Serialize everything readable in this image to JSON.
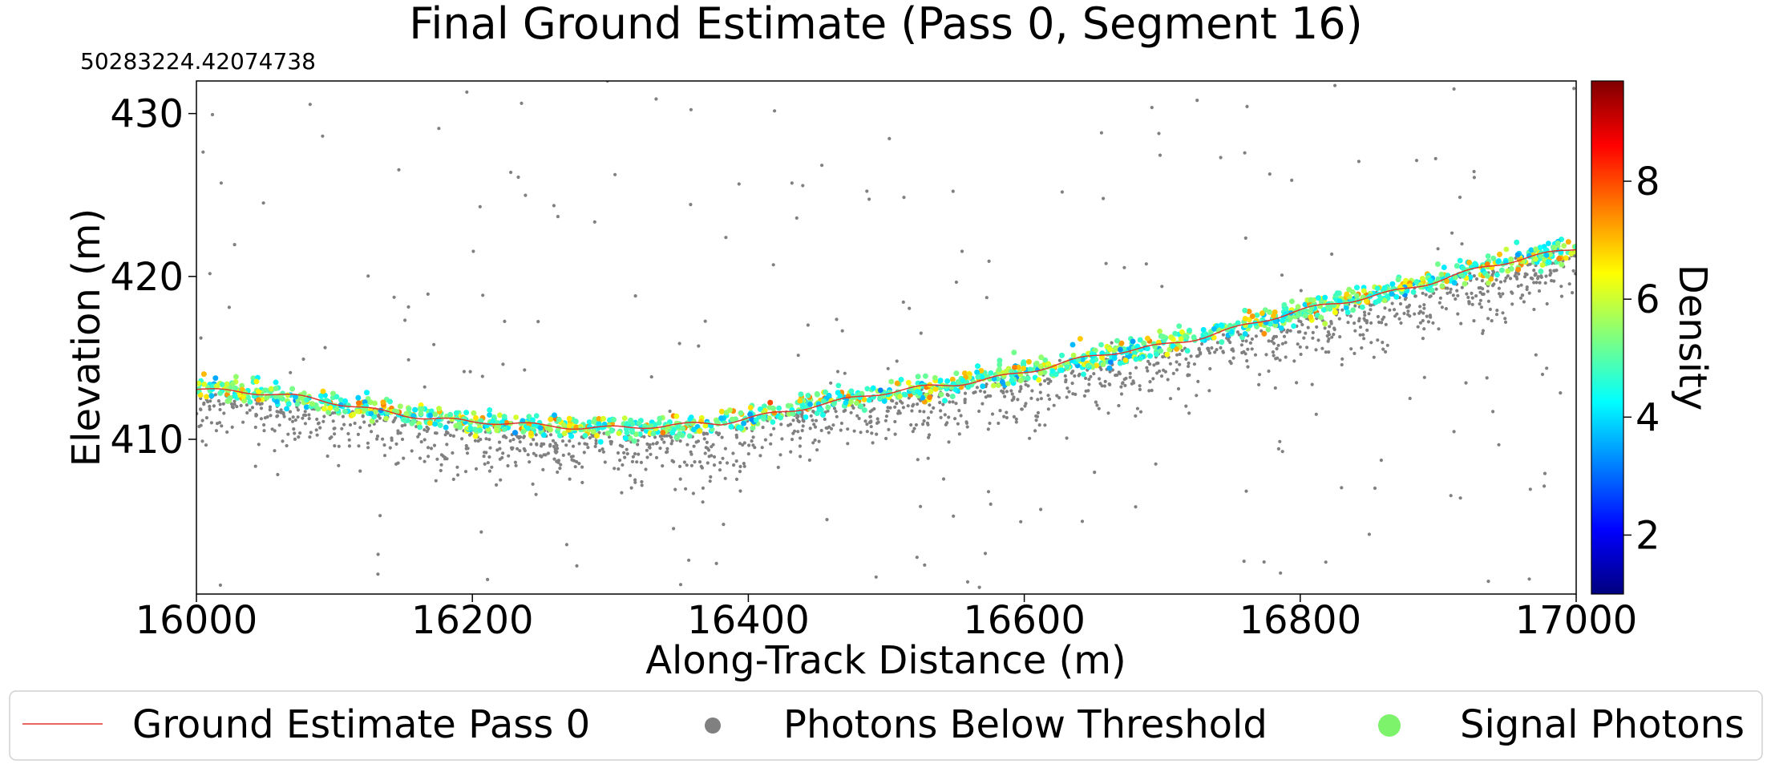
{
  "chart_data": {
    "type": "scatter",
    "title": "Final Ground Estimate (Pass 0, Segment 16)",
    "offset_label": "50283224.42074738",
    "xlabel": "Along-Track Distance (m)",
    "ylabel": "Elevation (m)",
    "xlim": [
      16000,
      17000
    ],
    "ylim": [
      400.5,
      432
    ],
    "x_ticks": [
      16000,
      16200,
      16400,
      16600,
      16800,
      17000
    ],
    "y_ticks": [
      410,
      420,
      430
    ],
    "grid": false,
    "colorbar": {
      "label": "Density",
      "range": [
        1,
        9.7
      ],
      "ticks": [
        2,
        4,
        6,
        8
      ],
      "colormap": "jet"
    },
    "legend": {
      "placement": "bottom",
      "entries": [
        {
          "label": "Ground Estimate Pass 0",
          "kind": "line",
          "color": "#e0342c"
        },
        {
          "label": "Photons Below Threshold",
          "kind": "dot",
          "color": "#808080"
        },
        {
          "label": "Signal Photons",
          "kind": "dot",
          "color": "#7df26b"
        }
      ]
    },
    "series": [
      {
        "name": "Ground Estimate Pass 0",
        "kind": "line",
        "color": "#e0342c",
        "x": [
          16000,
          16050,
          16100,
          16150,
          16200,
          16250,
          16300,
          16350,
          16380,
          16400,
          16450,
          16500,
          16550,
          16600,
          16650,
          16700,
          16750,
          16800,
          16850,
          16900,
          16950,
          17000
        ],
        "y": [
          413.2,
          412.8,
          412.2,
          411.6,
          411.0,
          410.8,
          410.8,
          410.8,
          410.9,
          411.3,
          412.2,
          412.8,
          413.4,
          414.2,
          415.0,
          415.8,
          416.8,
          417.8,
          418.8,
          419.8,
          420.8,
          421.8
        ]
      },
      {
        "name": "Photons Below Threshold",
        "kind": "scatter",
        "color": "#808080",
        "note_density": "dense band 0-4 m below ground estimate plus sparse scatter over full plot",
        "count_near_ground": 1400,
        "count_sparse": 220
      },
      {
        "name": "Signal Photons",
        "kind": "scatter",
        "colored_by": "Density",
        "count": 2600
      }
    ]
  }
}
